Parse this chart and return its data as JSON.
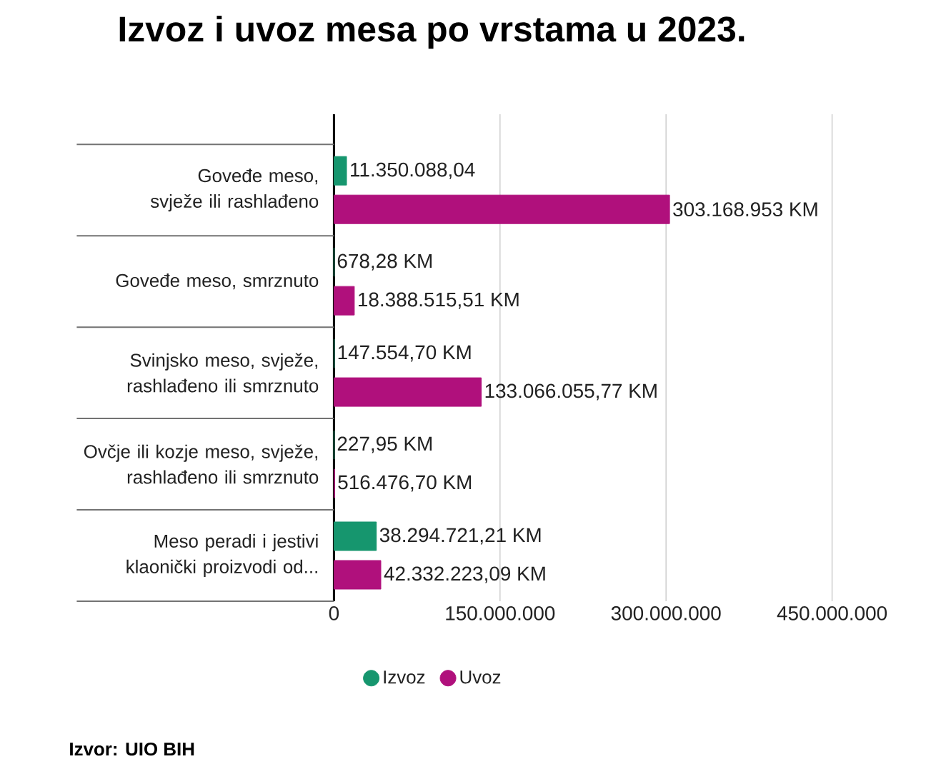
{
  "chart_data": {
    "type": "bar",
    "orientation": "horizontal",
    "title": "Izvoz i uvoz mesa po vrstama u 2023.",
    "categories": [
      "Goveđe meso, svježe ili rashlađeno",
      "Goveđe meso, smrznuto",
      "Svinjsko meso, svježe, rashlađeno ili smrznuto",
      "Ovčje ili kozje meso, svježe, rashlađeno ili smrznuto",
      "Meso peradi i jestivi klaonički proizvodi od..."
    ],
    "series": [
      {
        "name": "Izvoz",
        "color": "#16966e",
        "values": [
          11350088.04,
          678.28,
          147554.7,
          227.95,
          38294721.21
        ],
        "value_labels": [
          "11.350.088,04",
          "678,28 KM",
          "147.554,70 KM",
          "227,95 KM",
          "38.294.721,21 KM"
        ]
      },
      {
        "name": "Uvoz",
        "color": "#b0107c",
        "values": [
          303168953,
          18388515.51,
          133066055.77,
          516476.7,
          42332223.09
        ],
        "value_labels": [
          "303.168.953 KM",
          "18.388.515,51 KM",
          "133.066.055,77 KM",
          "516.476,70 KM",
          "42.332.223,09 KM"
        ]
      }
    ],
    "xlim": [
      0,
      450000000
    ],
    "xticks": [
      0,
      {
        "value": 150000000,
        "label": "150.000.000"
      },
      {
        "value": 300000000,
        "label": "300.000.000"
      },
      {
        "value": 450000000,
        "label": "450.000.000"
      }
    ],
    "grid": "x",
    "legend": "bottom",
    "annotations": [
      "Izvor: UIO BIH"
    ]
  }
}
